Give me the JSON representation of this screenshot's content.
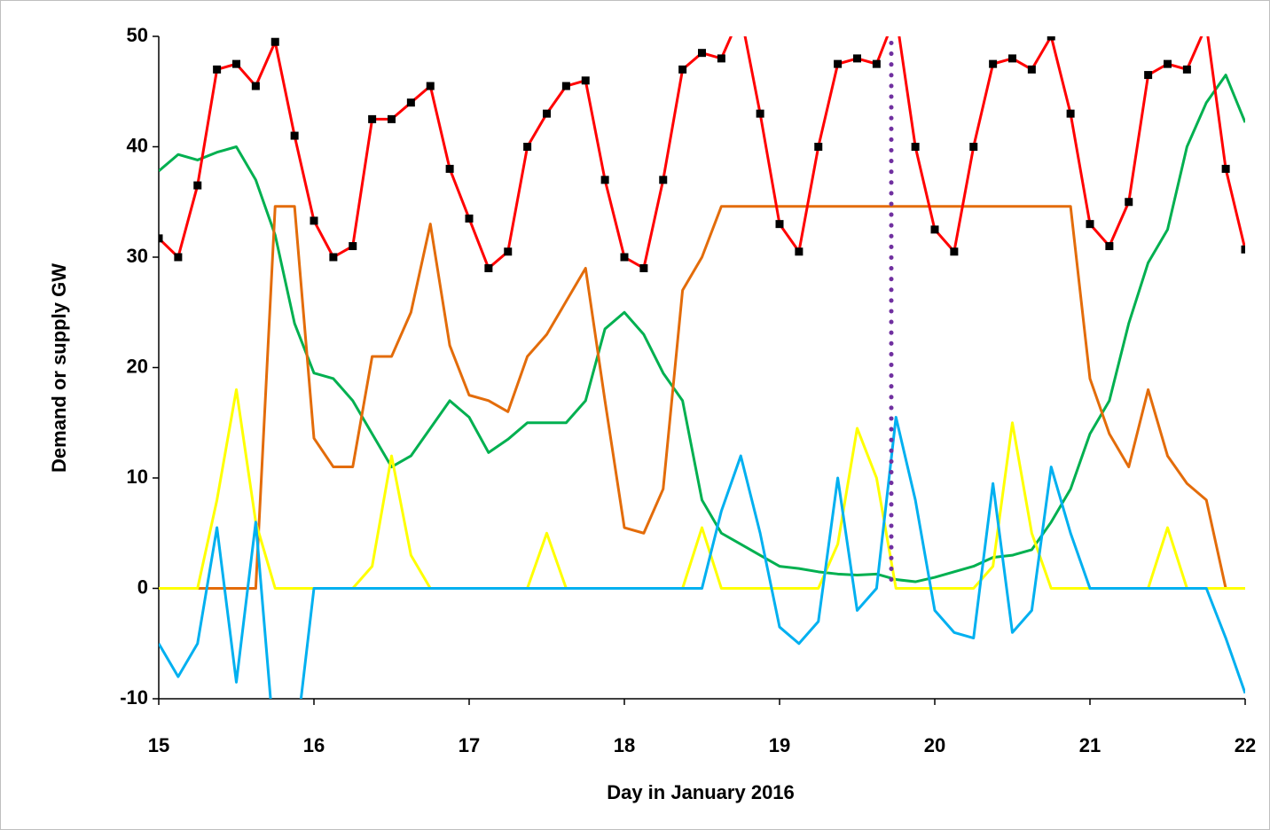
{
  "chart_data": {
    "type": "line",
    "xlabel": "Day in January 2016",
    "ylabel": "Demand or supply     GW",
    "xlim": [
      15,
      22
    ],
    "xticks": [
      15,
      16,
      17,
      18,
      19,
      20,
      21,
      22
    ],
    "ylim": [
      -10,
      50
    ],
    "yticks": [
      -10,
      0,
      10,
      20,
      30,
      40,
      50
    ],
    "grid": false,
    "x": [
      15,
      15.125,
      15.25,
      15.375,
      15.5,
      15.625,
      15.75,
      15.875,
      16,
      16.125,
      16.25,
      16.375,
      16.5,
      16.625,
      16.75,
      16.875,
      17,
      17.125,
      17.25,
      17.375,
      17.5,
      17.625,
      17.75,
      17.875,
      18,
      18.125,
      18.25,
      18.375,
      18.5,
      18.625,
      18.75,
      18.875,
      19,
      19.125,
      19.25,
      19.375,
      19.5,
      19.625,
      19.75,
      19.875,
      20,
      20.125,
      20.25,
      20.375,
      20.5,
      20.625,
      20.75,
      20.875,
      21,
      21.125,
      21.25,
      21.375,
      21.5,
      21.625,
      21.75,
      21.875,
      22
    ],
    "series": [
      {
        "color": "#00b050",
        "values": [
          37.8,
          39.3,
          38.8,
          39.5,
          40,
          37,
          32,
          24,
          19.5,
          19,
          17,
          14,
          11,
          12,
          14.5,
          17,
          15.5,
          12.3,
          13.5,
          15,
          15,
          15,
          17,
          23.5,
          25,
          23,
          19.5,
          17,
          8,
          5,
          4,
          3,
          2,
          1.8,
          1.5,
          1.3,
          1.2,
          1.3,
          0.8,
          0.6,
          1,
          1.5,
          2,
          2.8,
          3,
          3.5,
          6,
          9,
          14,
          17,
          24,
          29.5,
          32.5,
          40,
          44,
          46.5,
          42.2
        ]
      },
      {
        "color": "#e36c0a",
        "values": [
          0,
          0,
          0,
          0,
          0,
          0,
          34.6,
          34.6,
          13.6,
          11,
          11,
          21,
          21,
          25,
          33,
          22,
          17.5,
          17,
          16,
          21,
          23,
          26,
          29,
          17,
          5.5,
          5,
          9,
          27,
          30,
          34.6,
          34.6,
          34.6,
          34.6,
          34.6,
          34.6,
          34.6,
          34.6,
          34.6,
          34.6,
          34.6,
          34.6,
          34.6,
          34.6,
          34.6,
          34.6,
          34.6,
          34.6,
          34.6,
          19,
          14,
          11,
          18,
          12,
          9.5,
          8,
          0,
          0
        ]
      },
      {
        "color": "#ffff00",
        "values": [
          0,
          0,
          0,
          8,
          18,
          6,
          0,
          0,
          0,
          0,
          0,
          2,
          12,
          3,
          0,
          0,
          0,
          0,
          0,
          0,
          5,
          0,
          0,
          0,
          0,
          0,
          0,
          0,
          5.5,
          0,
          0,
          0,
          0,
          0,
          0,
          4,
          14.5,
          10,
          0,
          0,
          0,
          0,
          0,
          2,
          15,
          5,
          0,
          0,
          0,
          0,
          0,
          0,
          5.5,
          0,
          0,
          0,
          0
        ]
      },
      {
        "color": "#00b0f0",
        "values": [
          -5,
          -8,
          -5,
          5.5,
          -8.5,
          6,
          -15,
          -15,
          0,
          0,
          0,
          0,
          0,
          0,
          0,
          0,
          0,
          0,
          0,
          0,
          0,
          0,
          0,
          0,
          0,
          0,
          0,
          0,
          0,
          7,
          12,
          5,
          -3.5,
          -5,
          -3,
          10,
          -2,
          0,
          15.5,
          8,
          -2,
          -4,
          -4.5,
          9.5,
          -4,
          -2,
          11,
          5,
          0,
          0,
          0,
          0,
          0,
          0,
          0,
          -4.5,
          -9.5
        ]
      },
      {
        "color": "#ff0000",
        "marker_color": "#000000",
        "values": [
          31.7,
          30,
          36.5,
          47,
          47.5,
          45.5,
          49.5,
          41,
          33.3,
          30,
          31,
          42.5,
          42.5,
          44,
          45.5,
          38,
          33.5,
          29,
          30.5,
          40,
          43,
          45.5,
          46,
          37,
          30,
          29,
          37,
          47,
          48.5,
          48,
          52,
          43,
          33,
          30.5,
          40,
          47.5,
          48,
          47.5,
          52,
          40,
          32.5,
          30.5,
          40,
          47.5,
          48,
          47,
          50,
          43,
          33,
          31,
          35,
          46.5,
          47.5,
          47,
          51,
          38,
          30.7
        ]
      }
    ],
    "vline": {
      "x": 19.72,
      "y": [
        0.8,
        50
      ],
      "color": "#7030a0"
    }
  }
}
